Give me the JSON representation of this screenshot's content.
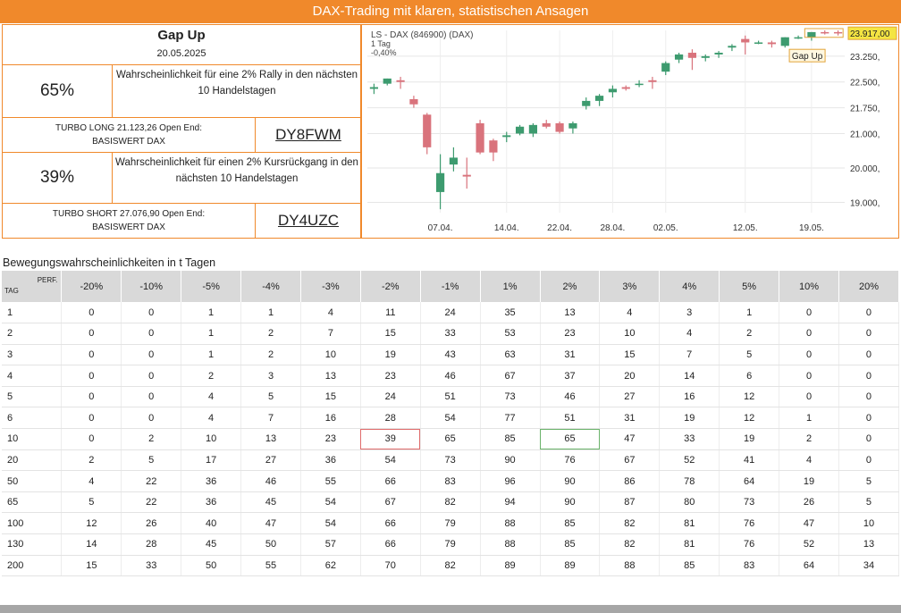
{
  "banner": {
    "title": "DAX-Trading mit klaren, statistischen Ansagen"
  },
  "info": {
    "signal": "Gap Up",
    "date": "20.05.2025",
    "long": {
      "pct": "65%",
      "text": "Wahrscheinlichkeit für eine 2% Rally in den nächsten 10 Handelstagen",
      "turbo": "TURBO LONG 21.123,26 Open End:",
      "basis": "BASISWERT DAX",
      "code": "DY8FWM"
    },
    "short": {
      "pct": "39%",
      "text": "Wahrscheinlichkeit für einen 2% Kursrückgang in den nächsten 10 Handelstagen",
      "turbo": "TURBO SHORT 27.076,90 Open End:",
      "basis": "BASISWERT DAX",
      "code": "DY4UZC"
    }
  },
  "chart_data": {
    "type": "candlestick",
    "legend": [
      "LS - DAX (846900) (DAX)",
      "1 Tag",
      "-0,40%"
    ],
    "last_price_label": "23.917,00",
    "annotation": "Gap Up",
    "ylim": [
      18700,
      24000
    ],
    "yticks": [
      19000,
      20000,
      21000,
      21750,
      22500,
      23250
    ],
    "ytick_labels": [
      "19.000,",
      "20.000,",
      "21.000,",
      "21.750,",
      "22.500,",
      "23.250,"
    ],
    "xtick_labels": [
      {
        "label": "07.04.",
        "index": 5
      },
      {
        "label": "14.04.",
        "index": 10
      },
      {
        "label": "22.04.",
        "index": 14
      },
      {
        "label": "28.04.",
        "index": 18
      },
      {
        "label": "02.05.",
        "index": 22
      },
      {
        "label": "12.05.",
        "index": 28
      },
      {
        "label": "19.05.",
        "index": 33
      }
    ],
    "candles": [
      {
        "o": 22300,
        "h": 22450,
        "l": 22150,
        "c": 22350
      },
      {
        "o": 22450,
        "h": 22600,
        "l": 22400,
        "c": 22600
      },
      {
        "o": 22550,
        "h": 22650,
        "l": 22300,
        "c": 22500
      },
      {
        "o": 22000,
        "h": 22100,
        "l": 21750,
        "c": 21850
      },
      {
        "o": 21550,
        "h": 21600,
        "l": 20400,
        "c": 20600
      },
      {
        "o": 19300,
        "h": 20400,
        "l": 18800,
        "c": 19850
      },
      {
        "o": 20100,
        "h": 20600,
        "l": 19900,
        "c": 20300
      },
      {
        "o": 19800,
        "h": 20300,
        "l": 19400,
        "c": 19750
      },
      {
        "o": 21300,
        "h": 21400,
        "l": 20400,
        "c": 20450
      },
      {
        "o": 20800,
        "h": 20850,
        "l": 20200,
        "c": 20450
      },
      {
        "o": 20900,
        "h": 21050,
        "l": 20750,
        "c": 20950
      },
      {
        "o": 21000,
        "h": 21250,
        "l": 20950,
        "c": 21200
      },
      {
        "o": 21000,
        "h": 21300,
        "l": 20900,
        "c": 21250
      },
      {
        "o": 21300,
        "h": 21400,
        "l": 21150,
        "c": 21200
      },
      {
        "o": 21300,
        "h": 21350,
        "l": 21000,
        "c": 21050
      },
      {
        "o": 21150,
        "h": 21350,
        "l": 21000,
        "c": 21300
      },
      {
        "o": 21800,
        "h": 22050,
        "l": 21700,
        "c": 21950
      },
      {
        "o": 21950,
        "h": 22150,
        "l": 21800,
        "c": 22100
      },
      {
        "o": 22200,
        "h": 22400,
        "l": 22050,
        "c": 22300
      },
      {
        "o": 22350,
        "h": 22400,
        "l": 22250,
        "c": 22300
      },
      {
        "o": 22450,
        "h": 22550,
        "l": 22350,
        "c": 22450
      },
      {
        "o": 22550,
        "h": 22650,
        "l": 22300,
        "c": 22500
      },
      {
        "o": 22800,
        "h": 23100,
        "l": 22700,
        "c": 23050
      },
      {
        "o": 23150,
        "h": 23350,
        "l": 23050,
        "c": 23300
      },
      {
        "o": 23350,
        "h": 23450,
        "l": 22850,
        "c": 23200
      },
      {
        "o": 23200,
        "h": 23300,
        "l": 23100,
        "c": 23250
      },
      {
        "o": 23300,
        "h": 23400,
        "l": 23200,
        "c": 23350
      },
      {
        "o": 23500,
        "h": 23600,
        "l": 23400,
        "c": 23550
      },
      {
        "o": 23750,
        "h": 23850,
        "l": 23300,
        "c": 23650
      },
      {
        "o": 23650,
        "h": 23700,
        "l": 23600,
        "c": 23650
      },
      {
        "o": 23650,
        "h": 23700,
        "l": 23500,
        "c": 23600
      },
      {
        "o": 23550,
        "h": 23800,
        "l": 23500,
        "c": 23800
      },
      {
        "o": 23800,
        "h": 23850,
        "l": 23750,
        "c": 23800
      },
      {
        "o": 23800,
        "h": 23950,
        "l": 23700,
        "c": 23950
      },
      {
        "o": 23950,
        "h": 24000,
        "l": 23880,
        "c": 23920
      },
      {
        "o": 23950,
        "h": 24000,
        "l": 23850,
        "c": 23917
      }
    ]
  },
  "table": {
    "title": "Bewegungswahrscheinlichkeiten in t Tagen",
    "corner_top": "PERF.",
    "corner_bottom": "TAG",
    "columns": [
      "-20%",
      "-10%",
      "-5%",
      "-4%",
      "-3%",
      "-2%",
      "-1%",
      "1%",
      "2%",
      "3%",
      "4%",
      "5%",
      "10%",
      "20%"
    ],
    "rows": [
      {
        "tag": "1",
        "values": [
          "0",
          "0",
          "1",
          "1",
          "4",
          "11",
          "24",
          "35",
          "13",
          "4",
          "3",
          "1",
          "0",
          "0"
        ]
      },
      {
        "tag": "2",
        "values": [
          "0",
          "0",
          "1",
          "2",
          "7",
          "15",
          "33",
          "53",
          "23",
          "10",
          "4",
          "2",
          "0",
          "0"
        ]
      },
      {
        "tag": "3",
        "values": [
          "0",
          "0",
          "1",
          "2",
          "10",
          "19",
          "43",
          "63",
          "31",
          "15",
          "7",
          "5",
          "0",
          "0"
        ]
      },
      {
        "tag": "4",
        "values": [
          "0",
          "0",
          "2",
          "3",
          "13",
          "23",
          "46",
          "67",
          "37",
          "20",
          "14",
          "6",
          "0",
          "0"
        ]
      },
      {
        "tag": "5",
        "values": [
          "0",
          "0",
          "4",
          "5",
          "15",
          "24",
          "51",
          "73",
          "46",
          "27",
          "16",
          "12",
          "0",
          "0"
        ]
      },
      {
        "tag": "6",
        "values": [
          "0",
          "0",
          "4",
          "7",
          "16",
          "28",
          "54",
          "77",
          "51",
          "31",
          "19",
          "12",
          "1",
          "0"
        ]
      },
      {
        "tag": "10",
        "values": [
          "0",
          "2",
          "10",
          "13",
          "23",
          "39",
          "65",
          "85",
          "65",
          "47",
          "33",
          "19",
          "2",
          "0"
        ]
      },
      {
        "tag": "20",
        "values": [
          "2",
          "5",
          "17",
          "27",
          "36",
          "54",
          "73",
          "90",
          "76",
          "67",
          "52",
          "41",
          "4",
          "0"
        ]
      },
      {
        "tag": "50",
        "values": [
          "4",
          "22",
          "36",
          "46",
          "55",
          "66",
          "83",
          "96",
          "90",
          "86",
          "78",
          "64",
          "19",
          "5"
        ]
      },
      {
        "tag": "65",
        "values": [
          "5",
          "22",
          "36",
          "45",
          "54",
          "67",
          "82",
          "94",
          "90",
          "87",
          "80",
          "73",
          "26",
          "5"
        ]
      },
      {
        "tag": "100",
        "values": [
          "12",
          "26",
          "40",
          "47",
          "54",
          "66",
          "79",
          "88",
          "85",
          "82",
          "81",
          "76",
          "47",
          "10"
        ]
      },
      {
        "tag": "130",
        "values": [
          "14",
          "28",
          "45",
          "50",
          "57",
          "66",
          "79",
          "88",
          "85",
          "82",
          "81",
          "76",
          "52",
          "13"
        ]
      },
      {
        "tag": "200",
        "values": [
          "15",
          "33",
          "50",
          "55",
          "62",
          "70",
          "82",
          "89",
          "89",
          "88",
          "85",
          "83",
          "64",
          "34"
        ]
      }
    ],
    "highlight": [
      {
        "row": 6,
        "col": 5,
        "color": "red"
      },
      {
        "row": 6,
        "col": 8,
        "color": "green"
      }
    ]
  }
}
